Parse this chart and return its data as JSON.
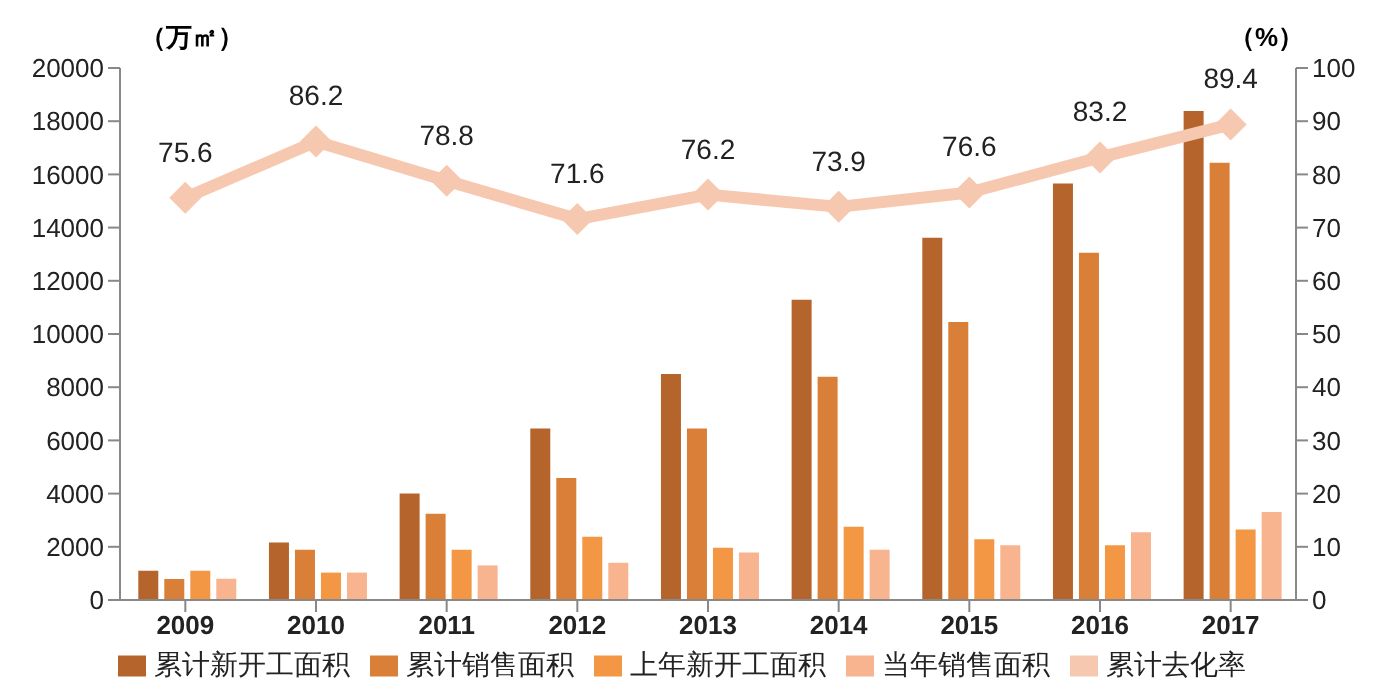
{
  "chart_data": {
    "type": "bar",
    "ylabel": "（万㎡）",
    "y2label": "（%）",
    "categories": [
      "2009",
      "2010",
      "2011",
      "2012",
      "2013",
      "2014",
      "2015",
      "2016",
      "2017"
    ],
    "series": [
      {
        "name": "累计新开工面积",
        "color": "#b5652c",
        "values": [
          1100,
          2160,
          4000,
          6450,
          8500,
          11290,
          13620,
          15660,
          18380
        ]
      },
      {
        "name": "累计销售面积",
        "color": "#d97f38",
        "values": [
          790,
          1890,
          3240,
          4590,
          6450,
          8390,
          10450,
          13050,
          16440
        ]
      },
      {
        "name": "上年新开工面积",
        "color": "#f39745",
        "values": [
          1100,
          1030,
          1890,
          2380,
          1960,
          2750,
          2280,
          2060,
          2650
        ]
      },
      {
        "name": "当年销售面积",
        "color": "#f8b38f",
        "values": [
          800,
          1030,
          1300,
          1400,
          1790,
          1890,
          2060,
          2550,
          3310
        ]
      },
      {
        "name": "累计去化率",
        "type": "line",
        "axis": "y2",
        "color": "#f7c8b0",
        "marker": "diamond",
        "values": [
          75.6,
          86.2,
          78.8,
          71.6,
          76.2,
          73.9,
          76.6,
          83.2,
          89.4
        ],
        "value_labels": [
          "75.6",
          "86.2",
          "78.8",
          "71.6",
          "76.2",
          "73.9",
          "76.6",
          "83.2",
          "89.4"
        ]
      }
    ],
    "ylim": [
      0,
      20000
    ],
    "yticks": [
      0,
      2000,
      4000,
      6000,
      8000,
      10000,
      12000,
      14000,
      16000,
      18000,
      20000
    ],
    "y2lim": [
      0,
      100
    ],
    "y2ticks": [
      0,
      10,
      20,
      30,
      40,
      50,
      60,
      70,
      80,
      90,
      100
    ],
    "grid": false,
    "legend": "bottom"
  }
}
